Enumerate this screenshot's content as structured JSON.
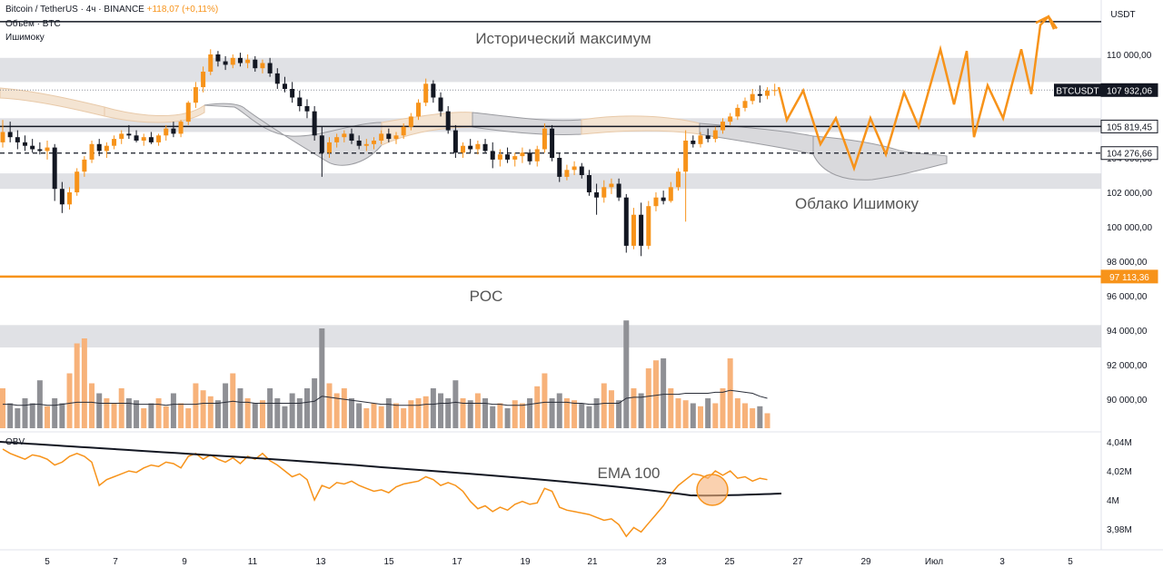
{
  "header": {
    "symbol": "Bitcoin / TetherUS · 4ч · BINANCE",
    "change": "+118,07 (+0,11%)",
    "line2": "Объём · BTC",
    "line3": "Ишимоку"
  },
  "obv_label": "OBV",
  "chart_data": {
    "type": "candlestick",
    "currency_label": "USDT",
    "price_axis": {
      "ticks": [
        "110 000,00",
        "108 000,00",
        "106 000,00",
        "104 000,00",
        "102 000,00",
        "100 000,00",
        "98 000,00",
        "96 000,00",
        "94 000,00",
        "92 000,00",
        "90 000,00"
      ],
      "tick_values": [
        110000,
        108000,
        106000,
        104000,
        102000,
        100000,
        98000,
        96000,
        94000,
        92000,
        90000
      ]
    },
    "obv_axis": {
      "ticks": [
        "4,04M",
        "4,02M",
        "4M",
        "3,98M"
      ],
      "tick_values": [
        4.04,
        4.02,
        4.0,
        3.98
      ]
    },
    "x_axis": {
      "ticks": [
        "5",
        "7",
        "9",
        "11",
        "13",
        "15",
        "17",
        "19",
        "21",
        "23",
        "25",
        "27",
        "29",
        "Июл",
        "3",
        "5"
      ]
    },
    "price_tags": [
      {
        "label": "BTCUSDT",
        "value": "107 932,06",
        "price": 107932.06,
        "style": "dark"
      },
      {
        "label": "",
        "value": "105 819,45",
        "price": 105819.45,
        "style": "light"
      },
      {
        "label": "",
        "value": "104 276,66",
        "price": 104276.66,
        "style": "light"
      },
      {
        "label": "",
        "value": "97 113,36",
        "price": 97113.36,
        "style": "orange"
      }
    ],
    "levels": {
      "ath": 111900,
      "resistance": 105819.45,
      "support_dashed": 104276.66,
      "poc": 97113.36
    },
    "zones": [
      {
        "from": 108400,
        "to": 109800
      },
      {
        "from": 105500,
        "to": 106300
      },
      {
        "from": 102200,
        "to": 103100
      },
      {
        "from": 93000,
        "to": 94300
      }
    ],
    "annotations": {
      "ath_label": "Исторический максимум",
      "ichimoku_label": "Облако Ишимоку",
      "poc_label": "POC",
      "ema_label": "EMA 100"
    },
    "projection_path": [
      [
        857,
        108100
      ],
      [
        866,
        106200
      ],
      [
        884,
        107900
      ],
      [
        903,
        104800
      ],
      [
        920,
        106300
      ],
      [
        940,
        103400
      ],
      [
        958,
        106300
      ],
      [
        975,
        104200
      ],
      [
        995,
        107800
      ],
      [
        1011,
        105800
      ],
      [
        1035,
        110300
      ],
      [
        1050,
        107100
      ],
      [
        1064,
        110200
      ],
      [
        1072,
        105200
      ],
      [
        1087,
        108200
      ],
      [
        1104,
        106300
      ],
      [
        1124,
        110300
      ],
      [
        1135,
        107700
      ],
      [
        1145,
        111700
      ],
      [
        1154,
        112200
      ],
      [
        1163,
        111500
      ]
    ],
    "candles": [
      [
        104900,
        106200,
        104600,
        105500
      ],
      [
        105500,
        106100,
        104900,
        105200
      ],
      [
        105200,
        105600,
        104500,
        104900
      ],
      [
        104900,
        105300,
        104400,
        104700
      ],
      [
        104700,
        105100,
        104300,
        104500
      ],
      [
        104500,
        104900,
        104200,
        104400
      ],
      [
        104400,
        105000,
        103900,
        104600
      ],
      [
        104600,
        104800,
        101500,
        102200
      ],
      [
        102200,
        102600,
        100800,
        101300
      ],
      [
        101300,
        102300,
        101000,
        102000
      ],
      [
        102000,
        103400,
        101800,
        103200
      ],
      [
        103200,
        104100,
        102900,
        103900
      ],
      [
        103900,
        105000,
        103700,
        104800
      ],
      [
        104800,
        105100,
        104100,
        104400
      ],
      [
        104400,
        104900,
        104000,
        104700
      ],
      [
        104700,
        105300,
        104500,
        105100
      ],
      [
        105100,
        105600,
        104800,
        105400
      ],
      [
        105400,
        105900,
        105100,
        105300
      ],
      [
        105300,
        105600,
        104900,
        105000
      ],
      [
        105000,
        105400,
        104700,
        105200
      ],
      [
        105200,
        105500,
        104800,
        104900
      ],
      [
        104900,
        105400,
        104700,
        105300
      ],
      [
        105300,
        105900,
        105000,
        105700
      ],
      [
        105700,
        106100,
        105200,
        105400
      ],
      [
        105400,
        106200,
        105200,
        106100
      ],
      [
        106100,
        107300,
        105900,
        107200
      ],
      [
        107200,
        108400,
        106900,
        108100
      ],
      [
        108100,
        109300,
        107800,
        109000
      ],
      [
        109000,
        110300,
        108800,
        110000
      ],
      [
        110000,
        110200,
        109300,
        109600
      ],
      [
        109600,
        109900,
        109100,
        109400
      ],
      [
        109400,
        110000,
        109200,
        109800
      ],
      [
        109800,
        110100,
        109300,
        109500
      ],
      [
        109500,
        110000,
        109200,
        109700
      ],
      [
        109700,
        109900,
        109000,
        109200
      ],
      [
        109200,
        109700,
        108900,
        109500
      ],
      [
        109500,
        109800,
        108700,
        108900
      ],
      [
        108900,
        109200,
        108000,
        108300
      ],
      [
        108300,
        108700,
        107800,
        108000
      ],
      [
        108000,
        108400,
        107200,
        107500
      ],
      [
        107500,
        107900,
        106700,
        107000
      ],
      [
        107000,
        107400,
        106300,
        106700
      ],
      [
        106700,
        107000,
        105000,
        105300
      ],
      [
        105300,
        105800,
        102900,
        104300
      ],
      [
        104300,
        105200,
        104000,
        104900
      ],
      [
        104900,
        105400,
        104600,
        105200
      ],
      [
        105200,
        105600,
        104900,
        105400
      ],
      [
        105400,
        105700,
        104800,
        105000
      ],
      [
        105000,
        105300,
        104500,
        104700
      ],
      [
        104700,
        105100,
        104400,
        104800
      ],
      [
        104800,
        105200,
        104500,
        105000
      ],
      [
        105000,
        105600,
        104800,
        105400
      ],
      [
        105400,
        105700,
        104900,
        105100
      ],
      [
        105100,
        105500,
        104800,
        105300
      ],
      [
        105300,
        106000,
        105100,
        105800
      ],
      [
        105800,
        106600,
        105600,
        106400
      ],
      [
        106400,
        107400,
        106200,
        107200
      ],
      [
        107200,
        108600,
        107000,
        108300
      ],
      [
        108300,
        108500,
        107200,
        107500
      ],
      [
        107500,
        107800,
        106400,
        106700
      ],
      [
        106700,
        107000,
        105400,
        105600
      ],
      [
        105600,
        105900,
        104000,
        104300
      ],
      [
        104300,
        104900,
        104000,
        104700
      ],
      [
        104700,
        105100,
        104300,
        104500
      ],
      [
        104500,
        105000,
        104200,
        104800
      ],
      [
        104800,
        105100,
        104300,
        104400
      ],
      [
        104400,
        104900,
        103400,
        103900
      ],
      [
        103900,
        104500,
        103500,
        104200
      ],
      [
        104200,
        104600,
        103700,
        103900
      ],
      [
        103900,
        104300,
        103500,
        104100
      ],
      [
        104100,
        104600,
        103700,
        104300
      ],
      [
        104300,
        104500,
        103600,
        103800
      ],
      [
        103800,
        104700,
        103500,
        104500
      ],
      [
        104500,
        106000,
        104300,
        105700
      ],
      [
        105700,
        105900,
        103800,
        104000
      ],
      [
        104000,
        104300,
        102600,
        102900
      ],
      [
        102900,
        103600,
        102700,
        103300
      ],
      [
        103300,
        103800,
        103000,
        103500
      ],
      [
        103500,
        103700,
        102800,
        103000
      ],
      [
        103000,
        103300,
        101800,
        102000
      ],
      [
        102000,
        102500,
        100700,
        101700
      ],
      [
        101700,
        102700,
        101400,
        102300
      ],
      [
        102300,
        102800,
        101900,
        102500
      ],
      [
        102500,
        102800,
        101500,
        101700
      ],
      [
        101700,
        101900,
        98500,
        98900
      ],
      [
        98900,
        101100,
        98700,
        100700
      ],
      [
        100700,
        101400,
        98300,
        98900
      ],
      [
        98900,
        101500,
        98700,
        101200
      ],
      [
        101200,
        102000,
        100900,
        101700
      ],
      [
        101700,
        102100,
        101300,
        101500
      ],
      [
        101500,
        102600,
        101400,
        102300
      ],
      [
        102300,
        103400,
        102100,
        103200
      ],
      [
        103200,
        105600,
        100300,
        105000
      ],
      [
        105000,
        105300,
        104600,
        104800
      ],
      [
        104800,
        105500,
        104600,
        105300
      ],
      [
        105300,
        105700,
        104900,
        105100
      ],
      [
        105100,
        105800,
        104900,
        105600
      ],
      [
        105600,
        106300,
        105400,
        106100
      ],
      [
        106100,
        106600,
        105900,
        106400
      ],
      [
        106400,
        107100,
        106200,
        106900
      ],
      [
        106900,
        107500,
        106700,
        107300
      ],
      [
        107300,
        108000,
        107100,
        107700
      ],
      [
        107700,
        108200,
        107200,
        107600
      ],
      [
        107600,
        108100,
        107400,
        107900
      ],
      [
        107900,
        108300,
        107600,
        107932
      ]
    ],
    "volume_ratios": [
      0.4,
      0.25,
      0.2,
      0.3,
      0.25,
      0.48,
      0.22,
      0.3,
      0.25,
      0.55,
      0.85,
      0.9,
      0.45,
      0.35,
      0.3,
      0.25,
      0.4,
      0.3,
      0.28,
      0.2,
      0.25,
      0.3,
      0.22,
      0.35,
      0.25,
      0.2,
      0.45,
      0.38,
      0.32,
      0.28,
      0.45,
      0.55,
      0.4,
      0.3,
      0.25,
      0.28,
      0.4,
      0.3,
      0.22,
      0.35,
      0.3,
      0.4,
      0.5,
      1.0,
      0.45,
      0.35,
      0.4,
      0.3,
      0.25,
      0.2,
      0.25,
      0.22,
      0.3,
      0.25,
      0.2,
      0.28,
      0.3,
      0.32,
      0.4,
      0.35,
      0.3,
      0.48,
      0.3,
      0.28,
      0.35,
      0.3,
      0.22,
      0.25,
      0.2,
      0.28,
      0.25,
      0.3,
      0.42,
      0.55,
      0.3,
      0.35,
      0.3,
      0.28,
      0.25,
      0.22,
      0.3,
      0.45,
      0.38,
      0.28,
      1.08,
      0.4,
      0.35,
      0.6,
      0.68,
      0.7,
      0.4,
      0.3,
      0.28,
      0.25,
      0.22,
      0.3,
      0.25,
      0.4,
      0.7,
      0.3,
      0.25,
      0.2,
      0.22,
      0.15
    ],
    "volume_ma": [
      0.24,
      0.24,
      0.23,
      0.23,
      0.24,
      0.24,
      0.23,
      0.23,
      0.24,
      0.25,
      0.26,
      0.26,
      0.26,
      0.25,
      0.25,
      0.25,
      0.25,
      0.25,
      0.24,
      0.24,
      0.24,
      0.24,
      0.23,
      0.24,
      0.24,
      0.24,
      0.24,
      0.25,
      0.25,
      0.25,
      0.26,
      0.27,
      0.26,
      0.26,
      0.25,
      0.25,
      0.25,
      0.25,
      0.25,
      0.25,
      0.25,
      0.26,
      0.27,
      0.32,
      0.31,
      0.3,
      0.29,
      0.28,
      0.27,
      0.26,
      0.25,
      0.24,
      0.24,
      0.23,
      0.23,
      0.23,
      0.23,
      0.24,
      0.24,
      0.25,
      0.25,
      0.26,
      0.25,
      0.25,
      0.25,
      0.25,
      0.24,
      0.24,
      0.23,
      0.23,
      0.23,
      0.24,
      0.25,
      0.26,
      0.26,
      0.26,
      0.26,
      0.25,
      0.25,
      0.24,
      0.24,
      0.25,
      0.25,
      0.25,
      0.3,
      0.31,
      0.31,
      0.32,
      0.33,
      0.34,
      0.34,
      0.34,
      0.35,
      0.35,
      0.35,
      0.35,
      0.36,
      0.36,
      0.38,
      0.37,
      0.36,
      0.35,
      0.32,
      0.3
    ]
  }
}
